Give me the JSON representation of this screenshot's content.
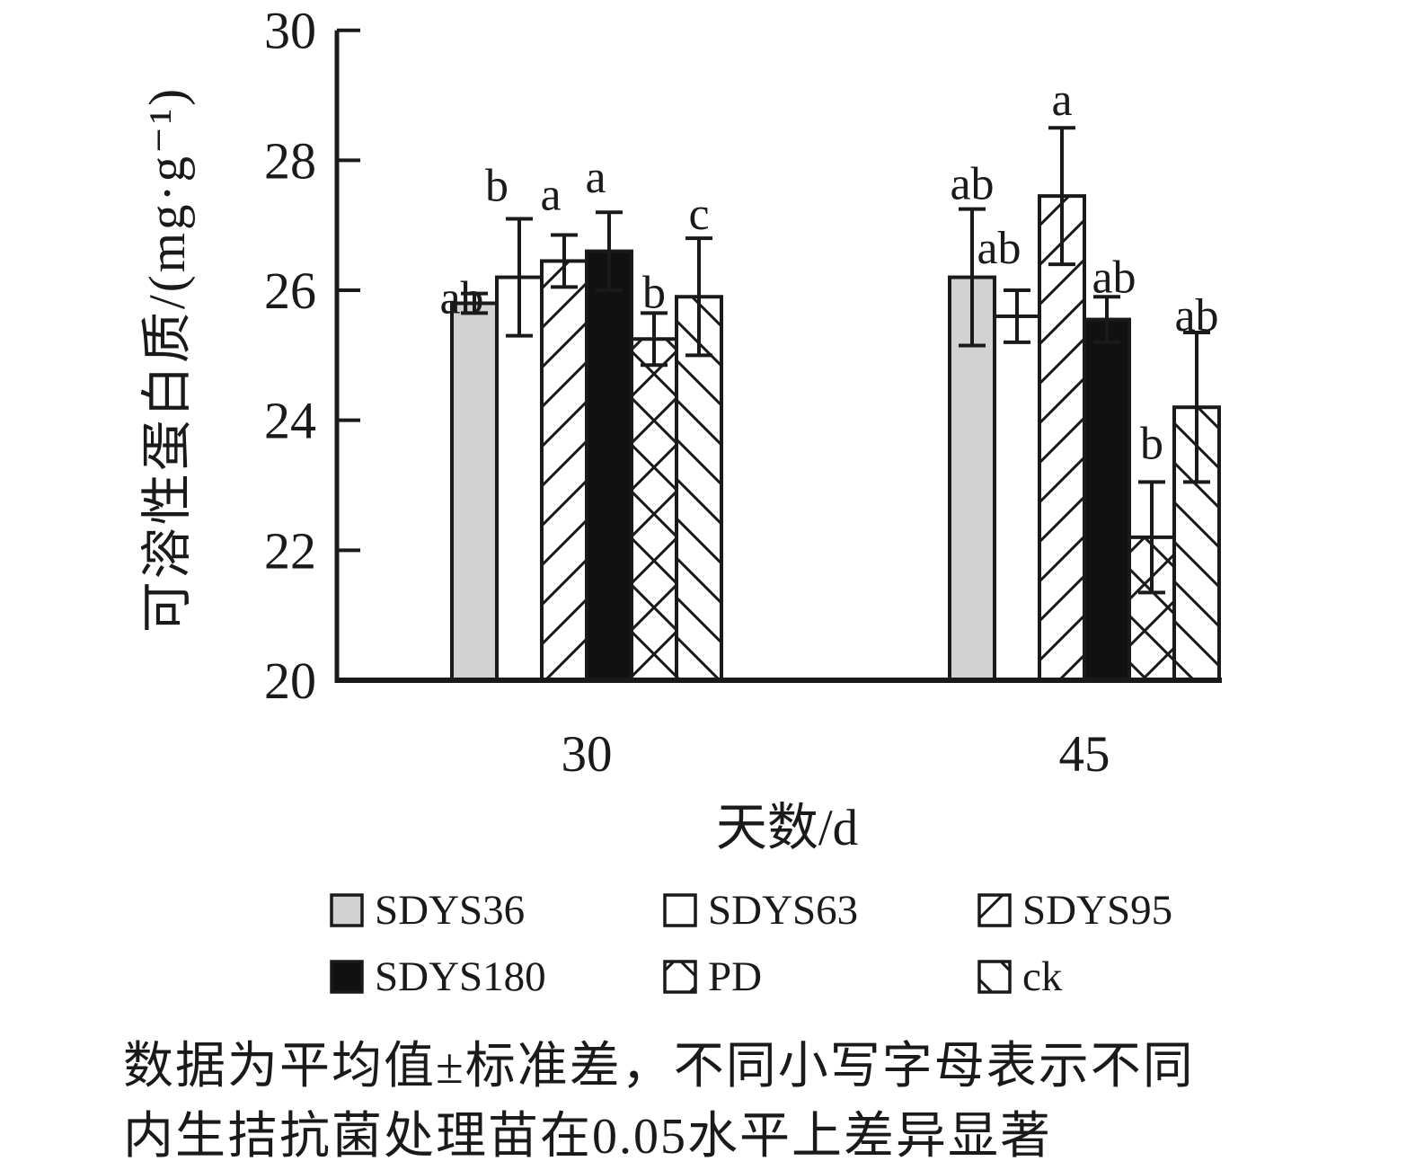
{
  "figure": {
    "y_axis_label": "可溶性蛋白质/(mg·g⁻¹)",
    "x_axis_label": "天数/d",
    "caption_line1": "数据为平均值±标准差，不同小写字母表示不同",
    "caption_line2": "内生拮抗菌处理苗在0.05水平上差异显著"
  },
  "chart_data": {
    "type": "bar",
    "title": "",
    "xlabel": "天数/d",
    "ylabel": "可溶性蛋白质/(mg·g⁻¹)",
    "ylim": [
      20,
      30
    ],
    "yticks": [
      20,
      22,
      24,
      26,
      28,
      30
    ],
    "categories": [
      "30",
      "45"
    ],
    "grid": false,
    "legend_position": "bottom",
    "error_bars": "standard deviation",
    "series": [
      {
        "name": "SDYS36",
        "style": "gray",
        "values": [
          25.8,
          26.2
        ],
        "errors": [
          0.15,
          1.05
        ],
        "sig_letters": [
          "ab",
          "ab"
        ]
      },
      {
        "name": "SDYS63",
        "style": "white",
        "values": [
          26.2,
          25.6
        ],
        "errors": [
          0.9,
          0.4
        ],
        "sig_letters": [
          "b",
          "ab"
        ]
      },
      {
        "name": "SDYS95",
        "style": "hatch-fwd",
        "values": [
          26.45,
          27.45
        ],
        "errors": [
          0.4,
          1.05
        ],
        "sig_letters": [
          "a",
          "a"
        ]
      },
      {
        "name": "SDYS180",
        "style": "black",
        "values": [
          26.6,
          25.55
        ],
        "errors": [
          0.6,
          0.35
        ],
        "sig_letters": [
          "a",
          "ab"
        ]
      },
      {
        "name": "PD",
        "style": "cross",
        "values": [
          25.25,
          22.2
        ],
        "errors": [
          0.4,
          0.85
        ],
        "sig_letters": [
          "b",
          "b"
        ]
      },
      {
        "name": "ck",
        "style": "hatch-bwd",
        "values": [
          25.9,
          24.2
        ],
        "errors": [
          0.9,
          1.15
        ],
        "sig_letters": [
          "c",
          "ab"
        ]
      }
    ],
    "colors": {
      "gray": "#d2d2d2",
      "black": "#111111",
      "white": "#ffffff",
      "stroke": "#1a1a1a"
    }
  }
}
